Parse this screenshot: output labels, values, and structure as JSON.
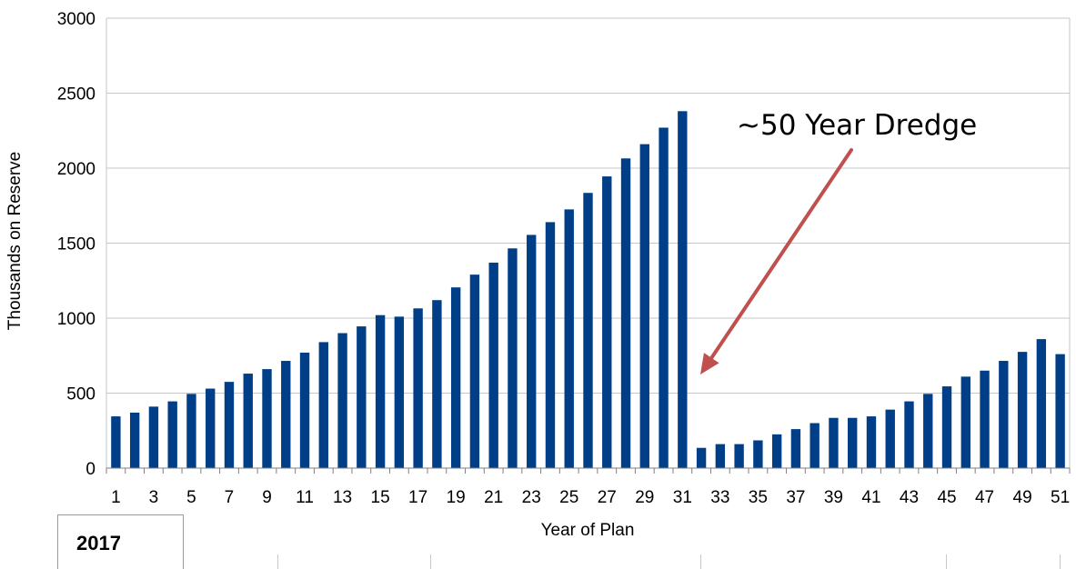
{
  "chart_data": {
    "type": "bar",
    "xlabel": "Year of Plan",
    "ylabel": "Thousands on Reserve",
    "ylim": [
      0,
      3000
    ],
    "yticks": [
      0,
      500,
      1000,
      1500,
      2000,
      2500,
      3000
    ],
    "categories": [
      1,
      2,
      3,
      4,
      5,
      6,
      7,
      8,
      9,
      10,
      11,
      12,
      13,
      14,
      15,
      16,
      17,
      18,
      19,
      20,
      21,
      22,
      23,
      24,
      25,
      26,
      27,
      28,
      29,
      30,
      31,
      32,
      33,
      34,
      35,
      36,
      37,
      38,
      39,
      40,
      41,
      42,
      43,
      44,
      45,
      46,
      47,
      48,
      49,
      50,
      51
    ],
    "xtick_labels": [
      1,
      3,
      5,
      7,
      9,
      11,
      13,
      15,
      17,
      19,
      21,
      23,
      25,
      27,
      29,
      31,
      33,
      35,
      37,
      39,
      41,
      43,
      45,
      47,
      49,
      51
    ],
    "values": [
      345,
      370,
      410,
      445,
      495,
      530,
      575,
      630,
      660,
      715,
      770,
      840,
      900,
      945,
      1020,
      1010,
      1065,
      1120,
      1205,
      1290,
      1370,
      1465,
      1555,
      1640,
      1725,
      1835,
      1945,
      2065,
      2160,
      2270,
      2380,
      135,
      160,
      160,
      185,
      225,
      260,
      300,
      335,
      335,
      345,
      390,
      445,
      495,
      545,
      610,
      650,
      715,
      775,
      860,
      760
    ],
    "bar_color": "#003f88",
    "grid": true,
    "annotation": {
      "text": "~50 Year Dredge",
      "arrow_color": "#c0504d"
    }
  },
  "footer": {
    "year_label": "2017"
  }
}
